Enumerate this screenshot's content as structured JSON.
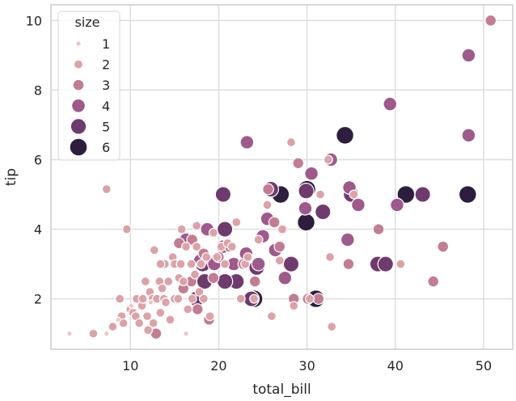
{
  "chart_data": {
    "type": "scatter",
    "title": "",
    "xlabel": "total_bill",
    "ylabel": "tip",
    "xlim": [
      1.0,
      53.3
    ],
    "ylim": [
      0.55,
      10.45
    ],
    "xticks": [
      10,
      20,
      30,
      40,
      50
    ],
    "yticks": [
      2,
      4,
      6,
      8,
      10
    ],
    "grid": true,
    "legend": {
      "title": "size",
      "placement": "top-left",
      "entries": [
        "1",
        "2",
        "3",
        "4",
        "5",
        "6"
      ]
    },
    "size_colors": {
      "1": "#ecc8c4",
      "2": "#dba2a7",
      "3": "#c27c93",
      "4": "#9e5a8c",
      "5": "#6f3a6e",
      "6": "#2d1e3e"
    },
    "points": [
      {
        "x": 3.1,
        "y": 1.0,
        "size": 1
      },
      {
        "x": 7.3,
        "y": 1.0,
        "size": 1
      },
      {
        "x": 8.6,
        "y": 1.4,
        "size": 1
      },
      {
        "x": 10.1,
        "y": 1.8,
        "size": 1
      },
      {
        "x": 12.3,
        "y": 1.9,
        "size": 1
      },
      {
        "x": 16.3,
        "y": 1.0,
        "size": 1
      },
      {
        "x": 5.8,
        "y": 1.0,
        "size": 2
      },
      {
        "x": 7.3,
        "y": 5.15,
        "size": 2
      },
      {
        "x": 8.0,
        "y": 1.2,
        "size": 2
      },
      {
        "x": 8.8,
        "y": 2.0,
        "size": 2
      },
      {
        "x": 9.0,
        "y": 1.5,
        "size": 2
      },
      {
        "x": 9.2,
        "y": 1.3,
        "size": 2
      },
      {
        "x": 9.6,
        "y": 4.0,
        "size": 2
      },
      {
        "x": 10.0,
        "y": 1.7,
        "size": 2
      },
      {
        "x": 10.3,
        "y": 1.6,
        "size": 2
      },
      {
        "x": 10.6,
        "y": 1.5,
        "size": 2
      },
      {
        "x": 10.7,
        "y": 2.0,
        "size": 2
      },
      {
        "x": 11.0,
        "y": 1.3,
        "size": 2
      },
      {
        "x": 11.3,
        "y": 1.8,
        "size": 2
      },
      {
        "x": 11.4,
        "y": 2.0,
        "size": 2
      },
      {
        "x": 11.7,
        "y": 2.5,
        "size": 2
      },
      {
        "x": 11.9,
        "y": 1.5,
        "size": 2
      },
      {
        "x": 12.0,
        "y": 1.1,
        "size": 2
      },
      {
        "x": 12.2,
        "y": 2.2,
        "size": 2
      },
      {
        "x": 12.5,
        "y": 2.0,
        "size": 2
      },
      {
        "x": 12.6,
        "y": 1.3,
        "size": 2
      },
      {
        "x": 12.7,
        "y": 3.4,
        "size": 2
      },
      {
        "x": 13.0,
        "y": 2.0,
        "size": 2
      },
      {
        "x": 13.3,
        "y": 2.5,
        "size": 2
      },
      {
        "x": 13.4,
        "y": 1.6,
        "size": 2
      },
      {
        "x": 13.6,
        "y": 2.3,
        "size": 2
      },
      {
        "x": 13.8,
        "y": 2.0,
        "size": 2
      },
      {
        "x": 13.9,
        "y": 3.0,
        "size": 2
      },
      {
        "x": 14.0,
        "y": 1.9,
        "size": 2
      },
      {
        "x": 14.3,
        "y": 2.5,
        "size": 2
      },
      {
        "x": 14.5,
        "y": 1.4,
        "size": 2
      },
      {
        "x": 14.8,
        "y": 3.2,
        "size": 2
      },
      {
        "x": 15.0,
        "y": 2.0,
        "size": 2
      },
      {
        "x": 15.0,
        "y": 3.0,
        "size": 2
      },
      {
        "x": 15.4,
        "y": 2.0,
        "size": 2
      },
      {
        "x": 15.5,
        "y": 2.6,
        "size": 2
      },
      {
        "x": 15.7,
        "y": 3.0,
        "size": 2
      },
      {
        "x": 16.0,
        "y": 2.5,
        "size": 2
      },
      {
        "x": 16.3,
        "y": 3.5,
        "size": 2
      },
      {
        "x": 16.5,
        "y": 1.7,
        "size": 2
      },
      {
        "x": 16.9,
        "y": 3.0,
        "size": 2
      },
      {
        "x": 17.0,
        "y": 2.0,
        "size": 2
      },
      {
        "x": 17.3,
        "y": 2.7,
        "size": 2
      },
      {
        "x": 17.5,
        "y": 3.5,
        "size": 2
      },
      {
        "x": 17.8,
        "y": 2.2,
        "size": 2
      },
      {
        "x": 18.0,
        "y": 3.0,
        "size": 2
      },
      {
        "x": 18.3,
        "y": 2.0,
        "size": 2
      },
      {
        "x": 18.6,
        "y": 3.2,
        "size": 2
      },
      {
        "x": 19.0,
        "y": 1.5,
        "size": 2
      },
      {
        "x": 19.4,
        "y": 3.9,
        "size": 2
      },
      {
        "x": 19.8,
        "y": 3.2,
        "size": 2
      },
      {
        "x": 20.3,
        "y": 3.5,
        "size": 2
      },
      {
        "x": 20.7,
        "y": 3.0,
        "size": 2
      },
      {
        "x": 21.0,
        "y": 3.6,
        "size": 2
      },
      {
        "x": 21.5,
        "y": 3.5,
        "size": 2
      },
      {
        "x": 22.0,
        "y": 4.2,
        "size": 2
      },
      {
        "x": 22.5,
        "y": 2.0,
        "size": 2
      },
      {
        "x": 23.0,
        "y": 3.0,
        "size": 2
      },
      {
        "x": 23.3,
        "y": 3.2,
        "size": 2
      },
      {
        "x": 24.0,
        "y": 2.0,
        "size": 2
      },
      {
        "x": 24.5,
        "y": 3.7,
        "size": 2
      },
      {
        "x": 25.5,
        "y": 4.7,
        "size": 2
      },
      {
        "x": 26.0,
        "y": 1.5,
        "size": 2
      },
      {
        "x": 26.9,
        "y": 3.1,
        "size": 2
      },
      {
        "x": 27.2,
        "y": 4.0,
        "size": 2
      },
      {
        "x": 28.2,
        "y": 6.5,
        "size": 2
      },
      {
        "x": 28.5,
        "y": 1.8,
        "size": 2
      },
      {
        "x": 30.3,
        "y": 2.0,
        "size": 2
      },
      {
        "x": 31.5,
        "y": 5.0,
        "size": 2
      },
      {
        "x": 32.4,
        "y": 6.0,
        "size": 2
      },
      {
        "x": 32.8,
        "y": 1.2,
        "size": 2
      },
      {
        "x": 32.6,
        "y": 3.2,
        "size": 2
      },
      {
        "x": 35.3,
        "y": 5.0,
        "size": 2
      },
      {
        "x": 40.6,
        "y": 3.0,
        "size": 2
      },
      {
        "x": 15.8,
        "y": 4.0,
        "size": 2
      },
      {
        "x": 13.4,
        "y": 3.0,
        "size": 2
      },
      {
        "x": 17.5,
        "y": 4.1,
        "size": 2
      },
      {
        "x": 12.9,
        "y": 1.0,
        "size": 3
      },
      {
        "x": 16.0,
        "y": 2.3,
        "size": 3
      },
      {
        "x": 17.0,
        "y": 3.7,
        "size": 3
      },
      {
        "x": 17.6,
        "y": 1.7,
        "size": 3
      },
      {
        "x": 18.3,
        "y": 3.3,
        "size": 3
      },
      {
        "x": 19.4,
        "y": 2.6,
        "size": 3
      },
      {
        "x": 20.0,
        "y": 3.2,
        "size": 3
      },
      {
        "x": 21.2,
        "y": 3.5,
        "size": 3
      },
      {
        "x": 22.8,
        "y": 3.0,
        "size": 3
      },
      {
        "x": 24.1,
        "y": 2.5,
        "size": 3
      },
      {
        "x": 25.6,
        "y": 5.15,
        "size": 3
      },
      {
        "x": 26.9,
        "y": 3.5,
        "size": 3
      },
      {
        "x": 27.2,
        "y": 4.0,
        "size": 3
      },
      {
        "x": 28.5,
        "y": 2.0,
        "size": 3
      },
      {
        "x": 29.0,
        "y": 5.9,
        "size": 3
      },
      {
        "x": 30.1,
        "y": 2.0,
        "size": 3
      },
      {
        "x": 31.3,
        "y": 2.0,
        "size": 3
      },
      {
        "x": 34.7,
        "y": 3.0,
        "size": 3
      },
      {
        "x": 38.1,
        "y": 4.0,
        "size": 3
      },
      {
        "x": 44.3,
        "y": 2.5,
        "size": 3
      },
      {
        "x": 45.4,
        "y": 3.5,
        "size": 3
      },
      {
        "x": 50.8,
        "y": 10.0,
        "size": 3
      },
      {
        "x": 18.9,
        "y": 1.4,
        "size": 3
      },
      {
        "x": 15.5,
        "y": 3.6,
        "size": 3
      },
      {
        "x": 16.9,
        "y": 2.5,
        "size": 3
      },
      {
        "x": 26.3,
        "y": 4.2,
        "size": 3
      },
      {
        "x": 16.3,
        "y": 3.7,
        "size": 4
      },
      {
        "x": 17.9,
        "y": 3.1,
        "size": 4
      },
      {
        "x": 18.7,
        "y": 4.0,
        "size": 4
      },
      {
        "x": 20.5,
        "y": 3.5,
        "size": 4
      },
      {
        "x": 21.7,
        "y": 3.0,
        "size": 4
      },
      {
        "x": 23.2,
        "y": 6.5,
        "size": 4
      },
      {
        "x": 24.5,
        "y": 3.0,
        "size": 4
      },
      {
        "x": 25.0,
        "y": 3.8,
        "size": 4
      },
      {
        "x": 25.5,
        "y": 4.3,
        "size": 4
      },
      {
        "x": 26.4,
        "y": 3.4,
        "size": 4
      },
      {
        "x": 27.5,
        "y": 2.6,
        "size": 4
      },
      {
        "x": 29.8,
        "y": 4.6,
        "size": 4
      },
      {
        "x": 30.5,
        "y": 5.6,
        "size": 4
      },
      {
        "x": 34.8,
        "y": 5.2,
        "size": 4
      },
      {
        "x": 34.6,
        "y": 3.7,
        "size": 4
      },
      {
        "x": 35.8,
        "y": 4.7,
        "size": 4
      },
      {
        "x": 39.4,
        "y": 7.6,
        "size": 4
      },
      {
        "x": 40.2,
        "y": 4.7,
        "size": 4
      },
      {
        "x": 48.3,
        "y": 6.7,
        "size": 4
      },
      {
        "x": 48.3,
        "y": 9.0,
        "size": 4
      },
      {
        "x": 32.7,
        "y": 6.0,
        "size": 4
      },
      {
        "x": 19.5,
        "y": 3.0,
        "size": 4
      },
      {
        "x": 23.1,
        "y": 3.3,
        "size": 4
      },
      {
        "x": 18.2,
        "y": 3.0,
        "size": 5
      },
      {
        "x": 18.4,
        "y": 2.5,
        "size": 5
      },
      {
        "x": 20.5,
        "y": 5.0,
        "size": 5
      },
      {
        "x": 23.7,
        "y": 2.0,
        "size": 5
      },
      {
        "x": 24.3,
        "y": 2.9,
        "size": 5
      },
      {
        "x": 25.9,
        "y": 5.15,
        "size": 5
      },
      {
        "x": 28.2,
        "y": 3.0,
        "size": 5
      },
      {
        "x": 29.9,
        "y": 5.1,
        "size": 5
      },
      {
        "x": 31.8,
        "y": 4.5,
        "size": 5
      },
      {
        "x": 35.0,
        "y": 5.0,
        "size": 5
      },
      {
        "x": 38.0,
        "y": 3.0,
        "size": 5
      },
      {
        "x": 38.9,
        "y": 3.0,
        "size": 5
      },
      {
        "x": 43.1,
        "y": 5.0,
        "size": 5
      },
      {
        "x": 20.7,
        "y": 4.0,
        "size": 5
      },
      {
        "x": 22.0,
        "y": 2.5,
        "size": 5
      },
      {
        "x": 17.5,
        "y": 2.0,
        "size": 5
      },
      {
        "x": 20.7,
        "y": 2.5,
        "size": 5
      },
      {
        "x": 27.0,
        "y": 5.0,
        "size": 6
      },
      {
        "x": 29.9,
        "y": 4.2,
        "size": 6
      },
      {
        "x": 31.0,
        "y": 2.0,
        "size": 6
      },
      {
        "x": 34.3,
        "y": 6.7,
        "size": 6
      },
      {
        "x": 41.2,
        "y": 5.0,
        "size": 6
      },
      {
        "x": 48.2,
        "y": 5.0,
        "size": 6
      },
      {
        "x": 24.0,
        "y": 2.0,
        "size": 6
      },
      {
        "x": 28.2,
        "y": 3.0,
        "size": 6
      },
      {
        "x": 18.4,
        "y": 2.5,
        "size": 6
      },
      {
        "x": 30.0,
        "y": 5.15,
        "size": 6
      }
    ]
  }
}
